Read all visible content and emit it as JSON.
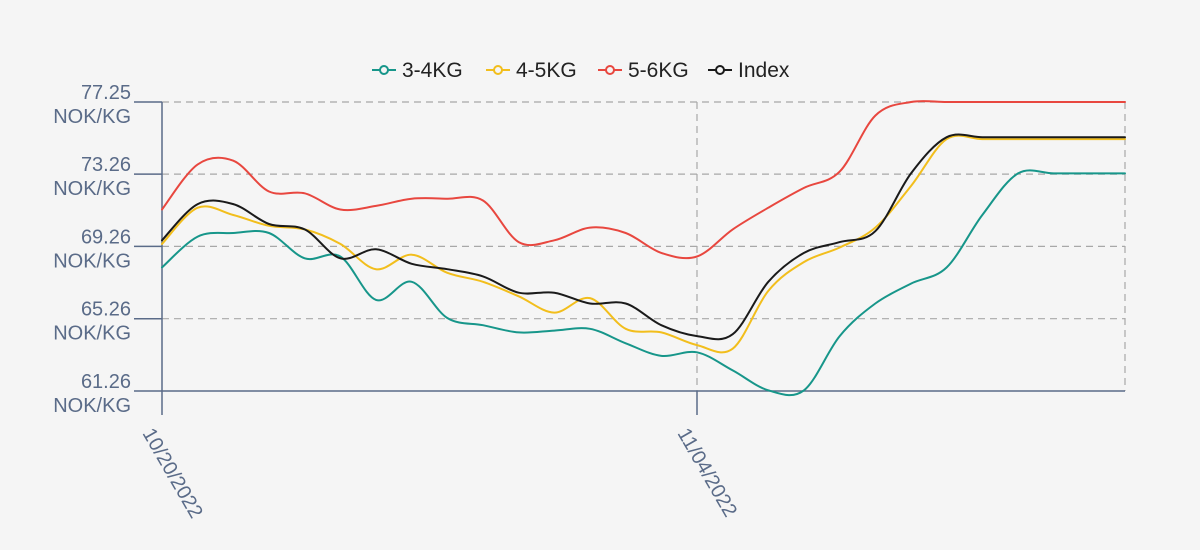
{
  "chart_data": {
    "type": "line",
    "title": "",
    "xlabel": "",
    "ylabel": "",
    "y_unit": "NOK/KG",
    "y_ticks": [
      "61.26",
      "65.26",
      "69.26",
      "73.26",
      "77.25"
    ],
    "ylim": [
      61.26,
      77.25
    ],
    "x_ticks": [
      {
        "date": "2022-10-20",
        "label": "10/20/2022"
      },
      {
        "date": "2022-11-04",
        "label": "11/04/2022"
      }
    ],
    "xlim": [
      "2022-10-20",
      "2022-11-16"
    ],
    "grid": true,
    "legend_position": "top",
    "x": [
      "2022-10-20",
      "2022-10-21",
      "2022-10-22",
      "2022-10-23",
      "2022-10-24",
      "2022-10-25",
      "2022-10-26",
      "2022-10-27",
      "2022-10-28",
      "2022-10-29",
      "2022-10-30",
      "2022-10-31",
      "2022-11-01",
      "2022-11-02",
      "2022-11-03",
      "2022-11-04",
      "2022-11-05",
      "2022-11-06",
      "2022-11-07",
      "2022-11-08",
      "2022-11-09",
      "2022-11-10",
      "2022-11-11",
      "2022-11-12",
      "2022-11-13",
      "2022-11-14",
      "2022-11-15",
      "2022-11-16"
    ],
    "series": [
      {
        "name": "3-4KG",
        "color": "#17968a",
        "values": [
          68.1,
          69.8,
          70.0,
          70.0,
          68.6,
          68.7,
          66.3,
          67.3,
          65.3,
          64.9,
          64.5,
          64.6,
          64.7,
          63.9,
          63.2,
          63.4,
          62.4,
          61.3,
          61.3,
          64.3,
          66.1,
          67.2,
          68.1,
          71.0,
          73.3,
          73.3,
          73.3,
          73.3
        ]
      },
      {
        "name": "4-5KG",
        "color": "#f2be1c",
        "values": [
          69.4,
          71.4,
          71.0,
          70.4,
          70.2,
          69.4,
          68.0,
          68.8,
          67.8,
          67.3,
          66.5,
          65.6,
          66.4,
          64.7,
          64.5,
          63.8,
          63.6,
          66.8,
          68.4,
          69.2,
          70.3,
          72.6,
          75.2,
          75.2,
          75.2,
          75.2,
          75.2,
          75.2
        ]
      },
      {
        "name": "5-6KG",
        "color": "#e8473f",
        "values": [
          71.3,
          73.8,
          74.0,
          72.3,
          72.2,
          71.3,
          71.5,
          71.9,
          71.9,
          71.8,
          69.5,
          69.6,
          70.3,
          70.0,
          68.9,
          68.7,
          70.2,
          71.4,
          72.5,
          73.4,
          76.5,
          77.25,
          77.25,
          77.25,
          77.25,
          77.25,
          77.25,
          77.25
        ]
      },
      {
        "name": "Index",
        "color": "#1a1a1a",
        "values": [
          69.6,
          71.6,
          71.6,
          70.5,
          70.2,
          68.6,
          69.1,
          68.3,
          68.0,
          67.6,
          66.7,
          66.7,
          66.1,
          66.1,
          64.9,
          64.3,
          64.4,
          67.3,
          68.9,
          69.5,
          70.1,
          73.3,
          75.3,
          75.3,
          75.3,
          75.3,
          75.3,
          75.3
        ]
      }
    ]
  }
}
